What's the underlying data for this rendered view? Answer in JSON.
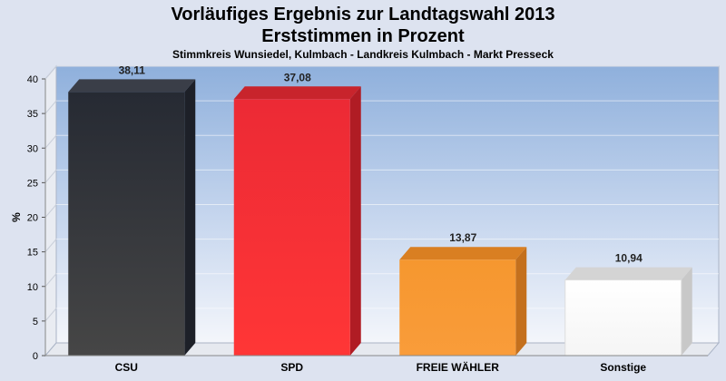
{
  "chart_data": {
    "type": "bar",
    "title": "Vorläufiges Ergebnis zur Landtagswahl 2013",
    "title_line2": "Erststimmen in Prozent",
    "subtitle": "Stimmkreis Wunsiedel, Kulmbach - Landkreis Kulmbach - Markt Presseck",
    "ylabel": "%",
    "xlabel": "",
    "ylim": [
      0,
      40
    ],
    "yticks": [
      "0",
      "5",
      "10",
      "15",
      "20",
      "25",
      "30",
      "35",
      "40"
    ],
    "grid": true,
    "categories": [
      "CSU",
      "SPD",
      "FREIE WÄHLER",
      "Sonstige"
    ],
    "values": [
      38.11,
      37.08,
      13.87,
      10.94
    ],
    "value_labels": [
      "38,11",
      "37,08",
      "13,87",
      "10,94"
    ],
    "colors": [
      "#333333",
      "#f02b31",
      "#f7962f",
      "#ffffff"
    ]
  }
}
